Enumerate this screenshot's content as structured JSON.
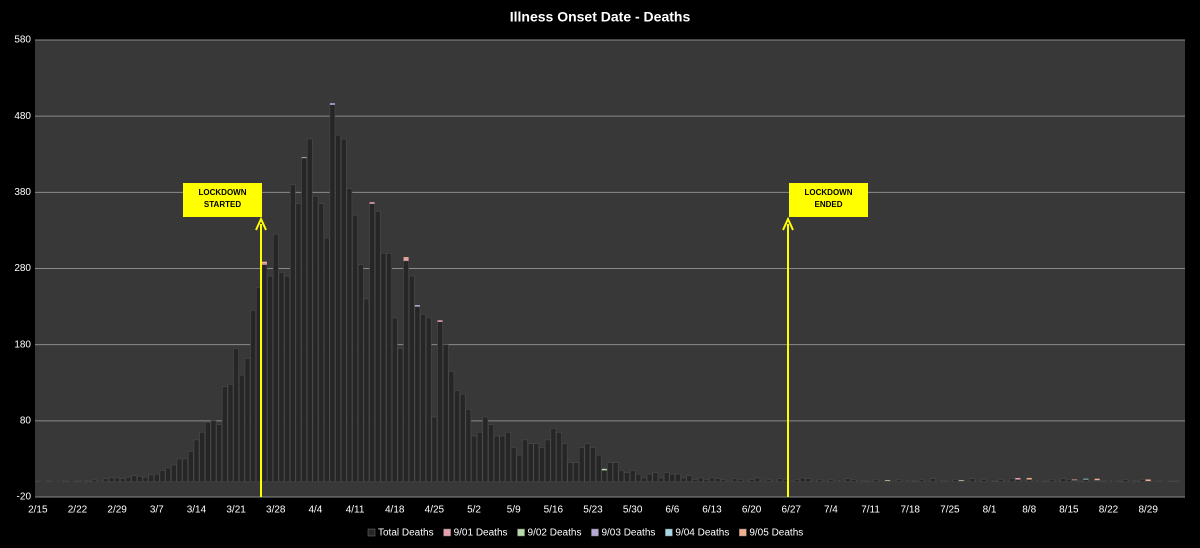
{
  "chart_data": {
    "type": "stacked_bar",
    "title": "Illness Onset Date - Deaths",
    "categories": [
      "2/15",
      null,
      null,
      null,
      null,
      null,
      null,
      "2/22",
      null,
      null,
      null,
      null,
      null,
      null,
      "2/29",
      null,
      null,
      null,
      null,
      null,
      null,
      "3/7",
      null,
      null,
      null,
      null,
      null,
      null,
      "3/14",
      null,
      null,
      null,
      null,
      null,
      null,
      "3/21",
      null,
      null,
      null,
      null,
      null,
      null,
      "3/28",
      null,
      null,
      null,
      null,
      null,
      null,
      "4/4",
      null,
      null,
      null,
      null,
      null,
      null,
      "4/11",
      null,
      null,
      null,
      null,
      null,
      null,
      "4/18",
      null,
      null,
      null,
      null,
      null,
      null,
      "4/25",
      null,
      null,
      null,
      null,
      null,
      null,
      "5/2",
      null,
      null,
      null,
      null,
      null,
      null,
      "5/9",
      null,
      null,
      null,
      null,
      null,
      null,
      "5/16",
      null,
      null,
      null,
      null,
      null,
      null,
      "5/23",
      null,
      null,
      null,
      null,
      null,
      null,
      "5/30",
      null,
      null,
      null,
      null,
      null,
      null,
      "6/6",
      null,
      null,
      null,
      null,
      null,
      null,
      "6/13",
      null,
      null,
      null,
      null,
      null,
      null,
      "6/20",
      null,
      null,
      null,
      null,
      null,
      null,
      "6/27",
      null,
      null,
      null,
      null,
      null,
      null,
      "7/4",
      null,
      null,
      null,
      null,
      null,
      null,
      "7/11",
      null,
      null,
      null,
      null,
      null,
      null,
      "7/18",
      null,
      null,
      null,
      null,
      null,
      null,
      "7/25",
      null,
      null,
      null,
      null,
      null,
      null,
      "8/1",
      null,
      null,
      null,
      null,
      null,
      null,
      "8/8",
      null,
      null,
      null,
      null,
      null,
      null,
      "8/15",
      null,
      null,
      null,
      null,
      null,
      null,
      "8/22",
      null,
      null,
      null,
      null,
      null,
      null,
      "8/29",
      null,
      null,
      null,
      null,
      null,
      null
    ],
    "series": [
      {
        "name": "Total Deaths",
        "color": "#262626",
        "values": [
          1,
          0,
          1,
          0,
          2,
          1,
          0,
          1,
          2,
          1,
          3,
          2,
          4,
          5,
          5,
          4,
          6,
          8,
          7,
          6,
          9,
          10,
          15,
          18,
          22,
          30,
          30,
          40,
          55,
          65,
          78,
          80,
          75,
          125,
          128,
          175,
          140,
          162,
          225,
          255,
          285,
          270,
          325,
          275,
          270,
          390,
          365,
          425,
          450,
          375,
          365,
          320,
          495,
          455,
          450,
          385,
          350,
          285,
          240,
          365,
          355,
          300,
          300,
          215,
          175,
          290,
          270,
          230,
          220,
          215,
          85,
          210,
          180,
          145,
          120,
          115,
          95,
          60,
          65,
          85,
          75,
          60,
          60,
          65,
          45,
          35,
          55,
          50,
          50,
          45,
          55,
          70,
          65,
          50,
          25,
          25,
          45,
          50,
          45,
          35,
          15,
          25,
          25,
          15,
          12,
          15,
          10,
          5,
          10,
          12,
          5,
          12,
          10,
          10,
          5,
          8,
          3,
          5,
          3,
          5,
          4,
          3,
          2,
          4,
          3,
          2,
          3,
          5,
          2,
          3,
          2,
          4,
          3,
          2,
          3,
          5,
          4,
          2,
          3,
          2,
          3,
          2,
          2,
          4,
          3,
          2,
          1,
          2,
          3,
          2,
          1,
          2,
          3,
          2,
          2,
          1,
          3,
          2,
          4,
          2,
          1,
          2,
          3,
          1,
          2,
          4,
          2,
          3,
          2,
          1,
          3,
          2,
          4,
          3,
          2,
          3,
          2,
          2,
          1,
          3,
          2,
          4,
          3,
          2,
          1,
          3,
          2,
          2,
          1,
          2,
          2,
          1,
          3,
          2,
          1,
          3,
          1,
          2,
          1,
          0,
          1,
          1,
          0
        ]
      },
      {
        "name": "9/01 Deaths",
        "color": "#e8a0b0",
        "values": [
          0,
          0,
          0,
          0,
          0,
          0,
          0,
          0,
          0,
          0,
          0,
          0,
          0,
          0,
          0,
          0,
          0,
          0,
          0,
          0,
          0,
          0,
          0,
          0,
          0,
          0,
          0,
          0,
          0,
          0,
          0,
          0,
          0,
          0,
          0,
          0,
          0,
          0,
          0,
          0,
          2,
          0,
          0,
          0,
          0,
          0,
          0,
          0,
          0,
          0,
          0,
          0,
          0,
          0,
          0,
          0,
          0,
          0,
          0,
          2,
          0,
          0,
          0,
          0,
          0,
          3,
          0,
          0,
          0,
          0,
          0,
          2,
          0,
          0,
          0,
          0,
          0,
          0,
          0,
          0,
          0,
          0,
          0,
          0,
          0,
          0,
          0,
          0,
          0,
          0,
          0,
          0,
          0,
          0,
          0,
          0,
          0,
          0,
          0,
          0,
          0,
          0,
          0,
          0,
          0,
          0,
          0,
          0,
          0,
          0,
          0,
          0,
          0,
          0,
          0,
          0,
          0,
          0,
          0,
          0,
          0,
          0,
          0,
          0,
          0,
          0,
          0,
          0,
          0,
          0,
          0,
          0,
          0,
          0,
          0,
          0,
          0,
          0,
          0,
          0,
          0,
          0,
          0,
          0,
          0,
          0,
          0,
          0,
          0,
          0,
          0,
          0,
          0,
          0,
          0,
          0,
          0,
          0,
          0,
          0,
          0,
          0,
          0,
          0,
          0,
          0,
          0,
          0,
          0,
          0,
          0,
          0,
          0,
          2,
          0,
          0,
          0,
          0,
          0,
          0,
          0,
          0,
          0,
          1,
          0,
          0,
          0,
          0,
          0,
          0,
          0,
          0,
          0,
          0,
          0,
          0,
          0,
          0,
          0,
          0,
          0,
          0,
          0
        ]
      },
      {
        "name": "9/02 Deaths",
        "color": "#b8d8a8",
        "values": [
          0,
          0,
          0,
          0,
          0,
          0,
          0,
          0,
          0,
          0,
          0,
          0,
          0,
          0,
          0,
          0,
          0,
          0,
          0,
          0,
          0,
          0,
          0,
          0,
          0,
          0,
          0,
          0,
          0,
          0,
          0,
          0,
          0,
          0,
          0,
          0,
          0,
          0,
          0,
          0,
          0,
          0,
          0,
          0,
          0,
          0,
          0,
          0,
          0,
          0,
          0,
          0,
          0,
          0,
          0,
          0,
          0,
          0,
          0,
          0,
          0,
          0,
          0,
          0,
          0,
          0,
          0,
          0,
          0,
          0,
          0,
          0,
          0,
          0,
          0,
          0,
          0,
          0,
          0,
          0,
          0,
          0,
          0,
          0,
          0,
          0,
          0,
          0,
          0,
          0,
          0,
          0,
          0,
          0,
          0,
          0,
          0,
          0,
          0,
          0,
          2,
          0,
          0,
          0,
          0,
          0,
          0,
          0,
          0,
          0,
          0,
          0,
          0,
          0,
          0,
          0,
          0,
          0,
          0,
          0,
          0,
          0,
          0,
          0,
          0,
          0,
          0,
          0,
          0,
          0,
          0,
          0,
          0,
          0,
          0,
          0,
          0,
          0,
          0,
          0,
          0,
          0,
          0,
          0,
          0,
          0,
          0,
          0,
          0,
          0,
          1,
          0,
          0,
          0,
          0,
          0,
          0,
          0,
          0,
          0,
          0,
          0,
          0,
          1,
          0,
          0,
          0,
          0,
          0,
          0,
          0,
          0,
          0,
          0,
          0,
          0,
          0,
          0,
          0,
          0,
          0,
          0,
          0,
          0,
          0,
          0,
          0,
          0,
          0,
          0,
          0,
          0,
          0,
          0,
          0,
          0,
          0,
          0,
          0,
          0,
          0,
          0,
          0
        ]
      },
      {
        "name": "9/03 Deaths",
        "color": "#b8a8d8",
        "values": [
          0,
          0,
          0,
          0,
          0,
          0,
          0,
          0,
          0,
          0,
          0,
          0,
          0,
          0,
          0,
          0,
          0,
          0,
          0,
          0,
          0,
          0,
          0,
          0,
          0,
          0,
          0,
          0,
          0,
          0,
          0,
          0,
          0,
          0,
          0,
          0,
          0,
          0,
          0,
          0,
          0,
          0,
          0,
          0,
          0,
          0,
          0,
          0,
          0,
          0,
          0,
          0,
          2,
          0,
          0,
          0,
          0,
          0,
          0,
          0,
          0,
          0,
          0,
          0,
          0,
          0,
          0,
          2,
          0,
          0,
          0,
          0,
          0,
          0,
          0,
          0,
          0,
          0,
          0,
          0,
          0,
          0,
          0,
          0,
          0,
          0,
          0,
          0,
          0,
          0,
          0,
          0,
          0,
          0,
          0,
          0,
          0,
          0,
          0,
          0,
          0,
          0,
          0,
          0,
          0,
          0,
          0,
          0,
          0,
          0,
          0,
          0,
          0,
          0,
          0,
          0,
          0,
          0,
          0,
          0,
          0,
          0,
          0,
          0,
          0,
          0,
          0,
          0,
          0,
          0,
          0,
          0,
          0,
          0,
          0,
          0,
          0,
          0,
          0,
          0,
          0,
          0,
          0,
          0,
          0,
          0,
          0,
          0,
          0,
          0,
          0,
          0,
          0,
          0,
          0,
          0,
          0,
          0,
          0,
          0,
          0,
          0,
          0,
          0,
          0,
          0,
          0,
          0,
          0,
          0,
          0,
          0,
          0,
          0,
          0,
          0,
          0,
          0,
          0,
          0,
          0,
          0,
          0,
          0,
          0,
          0,
          0,
          0,
          0,
          0,
          0,
          0,
          0,
          0,
          0,
          0,
          0,
          0,
          0,
          0,
          0,
          0,
          0
        ]
      },
      {
        "name": "9/04 Deaths",
        "color": "#a8d8e8",
        "values": [
          0,
          0,
          0,
          0,
          0,
          0,
          0,
          0,
          0,
          0,
          0,
          0,
          0,
          0,
          0,
          0,
          0,
          0,
          0,
          0,
          0,
          0,
          0,
          0,
          0,
          0,
          0,
          0,
          0,
          0,
          0,
          0,
          0,
          0,
          0,
          0,
          0,
          0,
          0,
          0,
          0,
          0,
          0,
          0,
          0,
          0,
          0,
          1,
          0,
          0,
          0,
          0,
          0,
          0,
          0,
          0,
          0,
          0,
          0,
          0,
          0,
          0,
          0,
          0,
          0,
          0,
          0,
          0,
          0,
          0,
          0,
          0,
          0,
          0,
          0,
          0,
          0,
          0,
          0,
          0,
          0,
          0,
          0,
          0,
          0,
          0,
          0,
          0,
          0,
          0,
          0,
          0,
          0,
          0,
          0,
          0,
          0,
          0,
          0,
          0,
          0,
          0,
          0,
          0,
          0,
          0,
          0,
          0,
          0,
          0,
          0,
          0,
          0,
          0,
          0,
          0,
          0,
          0,
          0,
          0,
          0,
          0,
          0,
          0,
          0,
          0,
          0,
          0,
          0,
          0,
          0,
          0,
          0,
          0,
          0,
          0,
          0,
          0,
          0,
          0,
          0,
          0,
          0,
          0,
          0,
          0,
          0,
          0,
          0,
          0,
          0,
          0,
          0,
          0,
          0,
          0,
          0,
          0,
          0,
          0,
          0,
          0,
          0,
          0,
          0,
          0,
          0,
          0,
          0,
          0,
          0,
          0,
          0,
          0,
          0,
          0,
          0,
          0,
          0,
          0,
          0,
          0,
          0,
          0,
          0,
          1,
          0,
          0,
          0,
          0,
          0,
          0,
          0,
          0,
          0,
          0,
          0,
          0,
          0,
          0,
          0,
          0,
          0
        ]
      },
      {
        "name": "9/05 Deaths",
        "color": "#f0b090",
        "values": [
          0,
          0,
          0,
          0,
          0,
          0,
          0,
          0,
          0,
          0,
          0,
          0,
          0,
          0,
          0,
          0,
          0,
          0,
          0,
          0,
          0,
          0,
          0,
          0,
          0,
          0,
          0,
          0,
          0,
          0,
          0,
          0,
          0,
          0,
          0,
          0,
          0,
          0,
          0,
          0,
          2,
          0,
          0,
          0,
          0,
          0,
          0,
          0,
          0,
          0,
          0,
          0,
          0,
          0,
          0,
          0,
          0,
          0,
          0,
          0,
          0,
          0,
          0,
          0,
          0,
          2,
          0,
          0,
          0,
          0,
          0,
          0,
          0,
          0,
          0,
          0,
          0,
          0,
          0,
          0,
          0,
          0,
          0,
          0,
          0,
          0,
          0,
          0,
          0,
          0,
          0,
          0,
          0,
          0,
          0,
          0,
          0,
          0,
          0,
          0,
          0,
          0,
          0,
          0,
          0,
          0,
          0,
          0,
          0,
          0,
          0,
          0,
          0,
          0,
          0,
          0,
          0,
          0,
          0,
          0,
          0,
          0,
          0,
          0,
          0,
          0,
          0,
          0,
          0,
          0,
          0,
          0,
          0,
          0,
          0,
          0,
          0,
          0,
          0,
          0,
          0,
          0,
          0,
          0,
          0,
          0,
          0,
          0,
          0,
          0,
          0,
          0,
          0,
          0,
          0,
          0,
          0,
          0,
          0,
          0,
          0,
          0,
          0,
          0,
          0,
          0,
          0,
          0,
          0,
          0,
          0,
          0,
          0,
          0,
          0,
          2,
          0,
          0,
          0,
          0,
          0,
          0,
          0,
          0,
          0,
          0,
          0,
          2,
          0,
          0,
          0,
          0,
          0,
          0,
          0,
          0,
          2,
          0,
          0,
          0,
          0,
          0,
          0
        ]
      }
    ],
    "ylim": [
      -20,
      580
    ],
    "yticks": [
      -20,
      80,
      180,
      280,
      380,
      480,
      580
    ],
    "grid": true,
    "annotations": [
      {
        "text": [
          "LOCKDOWN",
          "STARTED"
        ]
      },
      {
        "text": [
          "LOCKDOWN",
          "ENDED"
        ]
      }
    ]
  }
}
